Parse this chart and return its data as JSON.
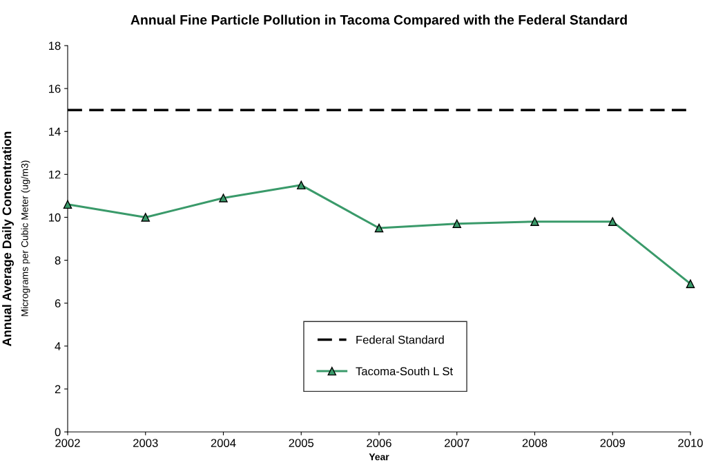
{
  "chart_data": {
    "type": "line",
    "title": "Annual Fine Particle Pollution in Tacoma Compared with the Federal Standard",
    "xlabel": "Year",
    "ylabel": "Annual Average Daily Concentration",
    "annotations": [
      "Micrograms per Cubic Meter (ug/m3)"
    ],
    "x": [
      2002,
      2003,
      2004,
      2005,
      2006,
      2007,
      2008,
      2009,
      2010
    ],
    "series": [
      {
        "name": "Federal Standard",
        "color": "#000000",
        "line_style": "dashed",
        "marker": "none",
        "values": [
          15,
          15,
          15,
          15,
          15,
          15,
          15,
          15,
          15
        ]
      },
      {
        "name": "Tacoma-South L St",
        "color": "#3a9a6a",
        "line_style": "solid",
        "marker": "triangle",
        "values": [
          10.6,
          10.0,
          10.9,
          11.5,
          9.5,
          9.7,
          9.8,
          9.8,
          6.9
        ]
      }
    ],
    "xlim": [
      2002,
      2010
    ],
    "xticks": [
      2002,
      2003,
      2004,
      2005,
      2006,
      2007,
      2008,
      2009,
      2010
    ],
    "ylim": [
      0,
      18
    ],
    "yticks": [
      0,
      2,
      4,
      6,
      8,
      10,
      12,
      14,
      16,
      18
    ],
    "grid": false,
    "legend": "bottom"
  }
}
